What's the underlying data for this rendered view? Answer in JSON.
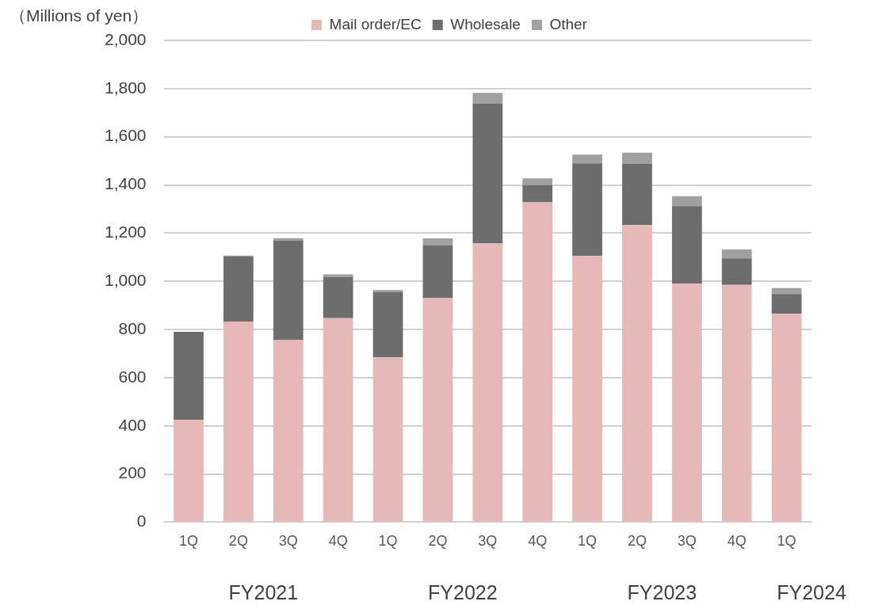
{
  "chart_data": {
    "type": "bar",
    "stacked": true,
    "ylabel": "（Millions of yen）",
    "categories": [
      "1Q",
      "2Q",
      "3Q",
      "4Q",
      "1Q",
      "2Q",
      "3Q",
      "4Q",
      "1Q",
      "2Q",
      "3Q",
      "4Q",
      "1Q"
    ],
    "series": [
      {
        "name": "Mail order/EC",
        "color": "#e6b8b7",
        "values": [
          425,
          833,
          756,
          847,
          684,
          930,
          1157,
          1328,
          1105,
          1233,
          990,
          985,
          865
        ]
      },
      {
        "name": "Wholesale",
        "color": "#6d6d6d",
        "values": [
          365,
          270,
          412,
          170,
          272,
          220,
          580,
          71,
          385,
          254,
          322,
          110,
          82
        ]
      },
      {
        "name": "Other",
        "color": "#a0a0a0",
        "values": [
          null,
          4,
          11,
          12,
          8,
          28,
          45,
          28,
          36,
          47,
          41,
          37,
          25
        ]
      }
    ],
    "ylim": [
      0,
      2000
    ],
    "yticks": [
      0,
      {
        "value": 200,
        "label": "200"
      },
      {
        "value": 400,
        "label": "400"
      },
      {
        "value": 600,
        "label": "600"
      },
      {
        "value": 800,
        "label": "800"
      },
      {
        "value": 1000,
        "label": "1,000"
      },
      {
        "value": 1200,
        "label": "1,200"
      },
      {
        "value": 1400,
        "label": "1,400"
      },
      {
        "value": 1600,
        "label": "1,600"
      },
      {
        "value": 1800,
        "label": "1,800"
      },
      {
        "value": 2000,
        "label": "2,000"
      }
    ],
    "grid": "y",
    "legend": "top",
    "annotations": [
      "FY2021",
      "FY2022",
      "FY2023",
      "FY2024"
    ]
  }
}
